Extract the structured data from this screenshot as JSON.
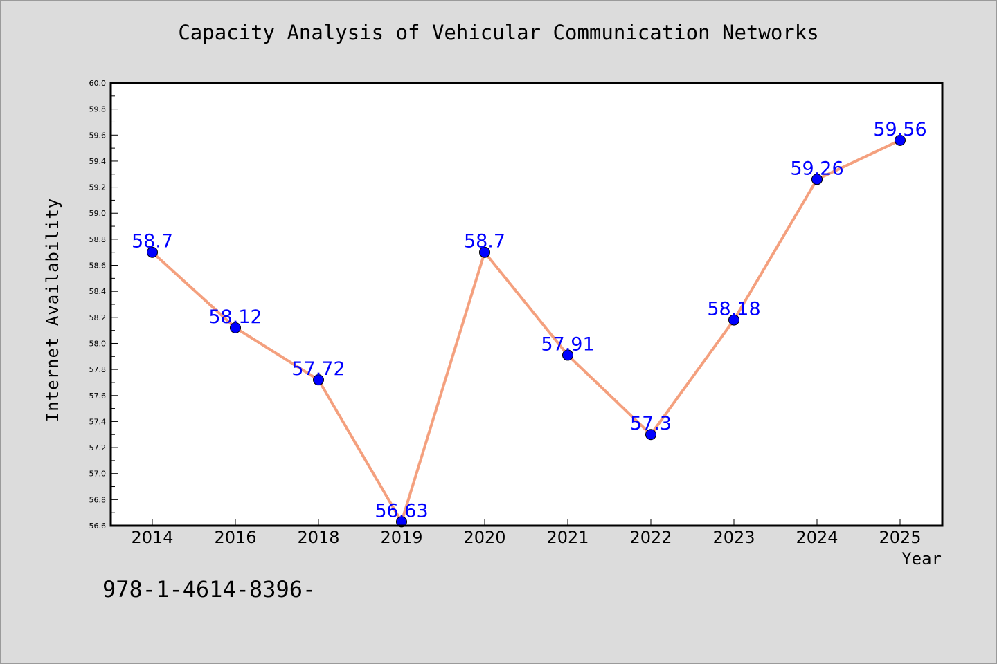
{
  "chart_data": {
    "type": "line",
    "title": "Capacity Analysis of Vehicular Communication Networks",
    "xlabel": "Year",
    "ylabel": "Internet Availability",
    "categories": [
      "2014",
      "2016",
      "2018",
      "2019",
      "2020",
      "2021",
      "2022",
      "2023",
      "2024",
      "2025"
    ],
    "series": [
      {
        "values": [
          58.7,
          58.12,
          57.72,
          56.63,
          58.7,
          57.91,
          57.3,
          58.18,
          59.26,
          59.56
        ],
        "data_labels": [
          "58.7",
          "58.12",
          "57.72",
          "56.63",
          "58.7",
          "57.91",
          "57.3",
          "58.18",
          "59.26",
          "59.56"
        ],
        "line_color": "#f4a07e",
        "marker_color": "#0000ff"
      }
    ],
    "ylim": [
      56.6,
      60.0
    ],
    "y_ticks": [
      "56.6",
      "56.8",
      "57.0",
      "57.2",
      "57.4",
      "57.6",
      "57.8",
      "58.0",
      "58.2",
      "58.4",
      "58.6",
      "58.8",
      "59.0",
      "59.2",
      "59.4",
      "59.6",
      "59.8",
      "60.0"
    ],
    "grid": false,
    "legend": "none"
  },
  "footnote": "978-1-4614-8396-",
  "colors": {
    "background": "#dcdcdc",
    "plot_background": "#ffffff",
    "label_text": "#0000ff"
  }
}
